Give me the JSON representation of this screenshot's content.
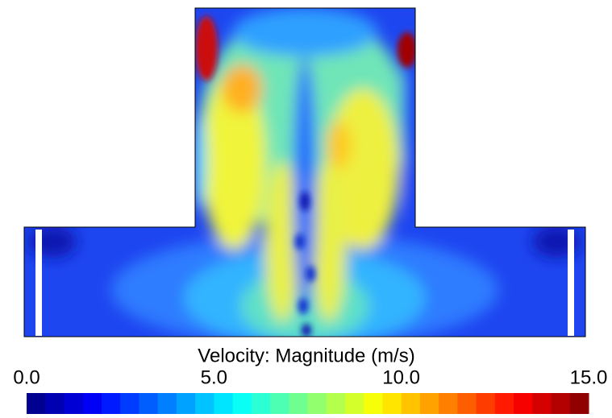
{
  "colorbar": {
    "title": "Velocity: Magnitude (m/s)",
    "colormap": "jet",
    "clim": [
      0,
      15
    ],
    "ticks": [
      {
        "value": 0,
        "label": "0.0"
      },
      {
        "value": 5,
        "label": "5.0"
      },
      {
        "value": 10,
        "label": "10.0"
      },
      {
        "value": 15,
        "label": "15.0"
      }
    ]
  }
}
